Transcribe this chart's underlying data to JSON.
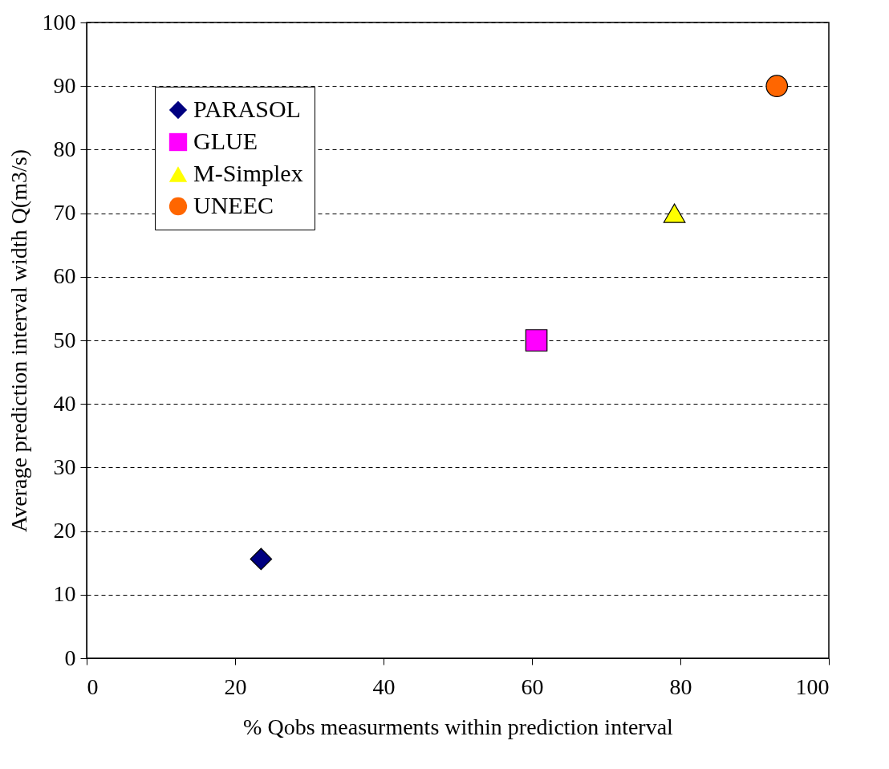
{
  "chart_data": {
    "type": "scatter",
    "xlabel": "% Qobs measurments within prediction interval",
    "ylabel": "Average prediction interval width Q(m3/s)",
    "xlim": [
      0,
      100
    ],
    "xticks": [
      0,
      20,
      40,
      60,
      80,
      100
    ],
    "ylim": [
      0,
      100
    ],
    "yticks": [
      0,
      10,
      20,
      30,
      40,
      50,
      60,
      70,
      80,
      90,
      100
    ],
    "grid": "y",
    "legend": "top left",
    "series": [
      {
        "name": "PARASOL",
        "color": "#000080",
        "marker": "diamond",
        "x": [
          23.5
        ],
        "values": [
          15.6
        ]
      },
      {
        "name": "GLUE",
        "color": "#ff00ff",
        "marker": "square",
        "x": [
          60.6
        ],
        "values": [
          50
        ]
      },
      {
        "name": "M-Simplex",
        "color": "#ffff00",
        "marker": "triangle",
        "x": [
          79.2
        ],
        "values": [
          70
        ]
      },
      {
        "name": "UNEEC",
        "color": "#ff6600",
        "marker": "circle",
        "x": [
          93
        ],
        "values": [
          90
        ]
      }
    ]
  }
}
